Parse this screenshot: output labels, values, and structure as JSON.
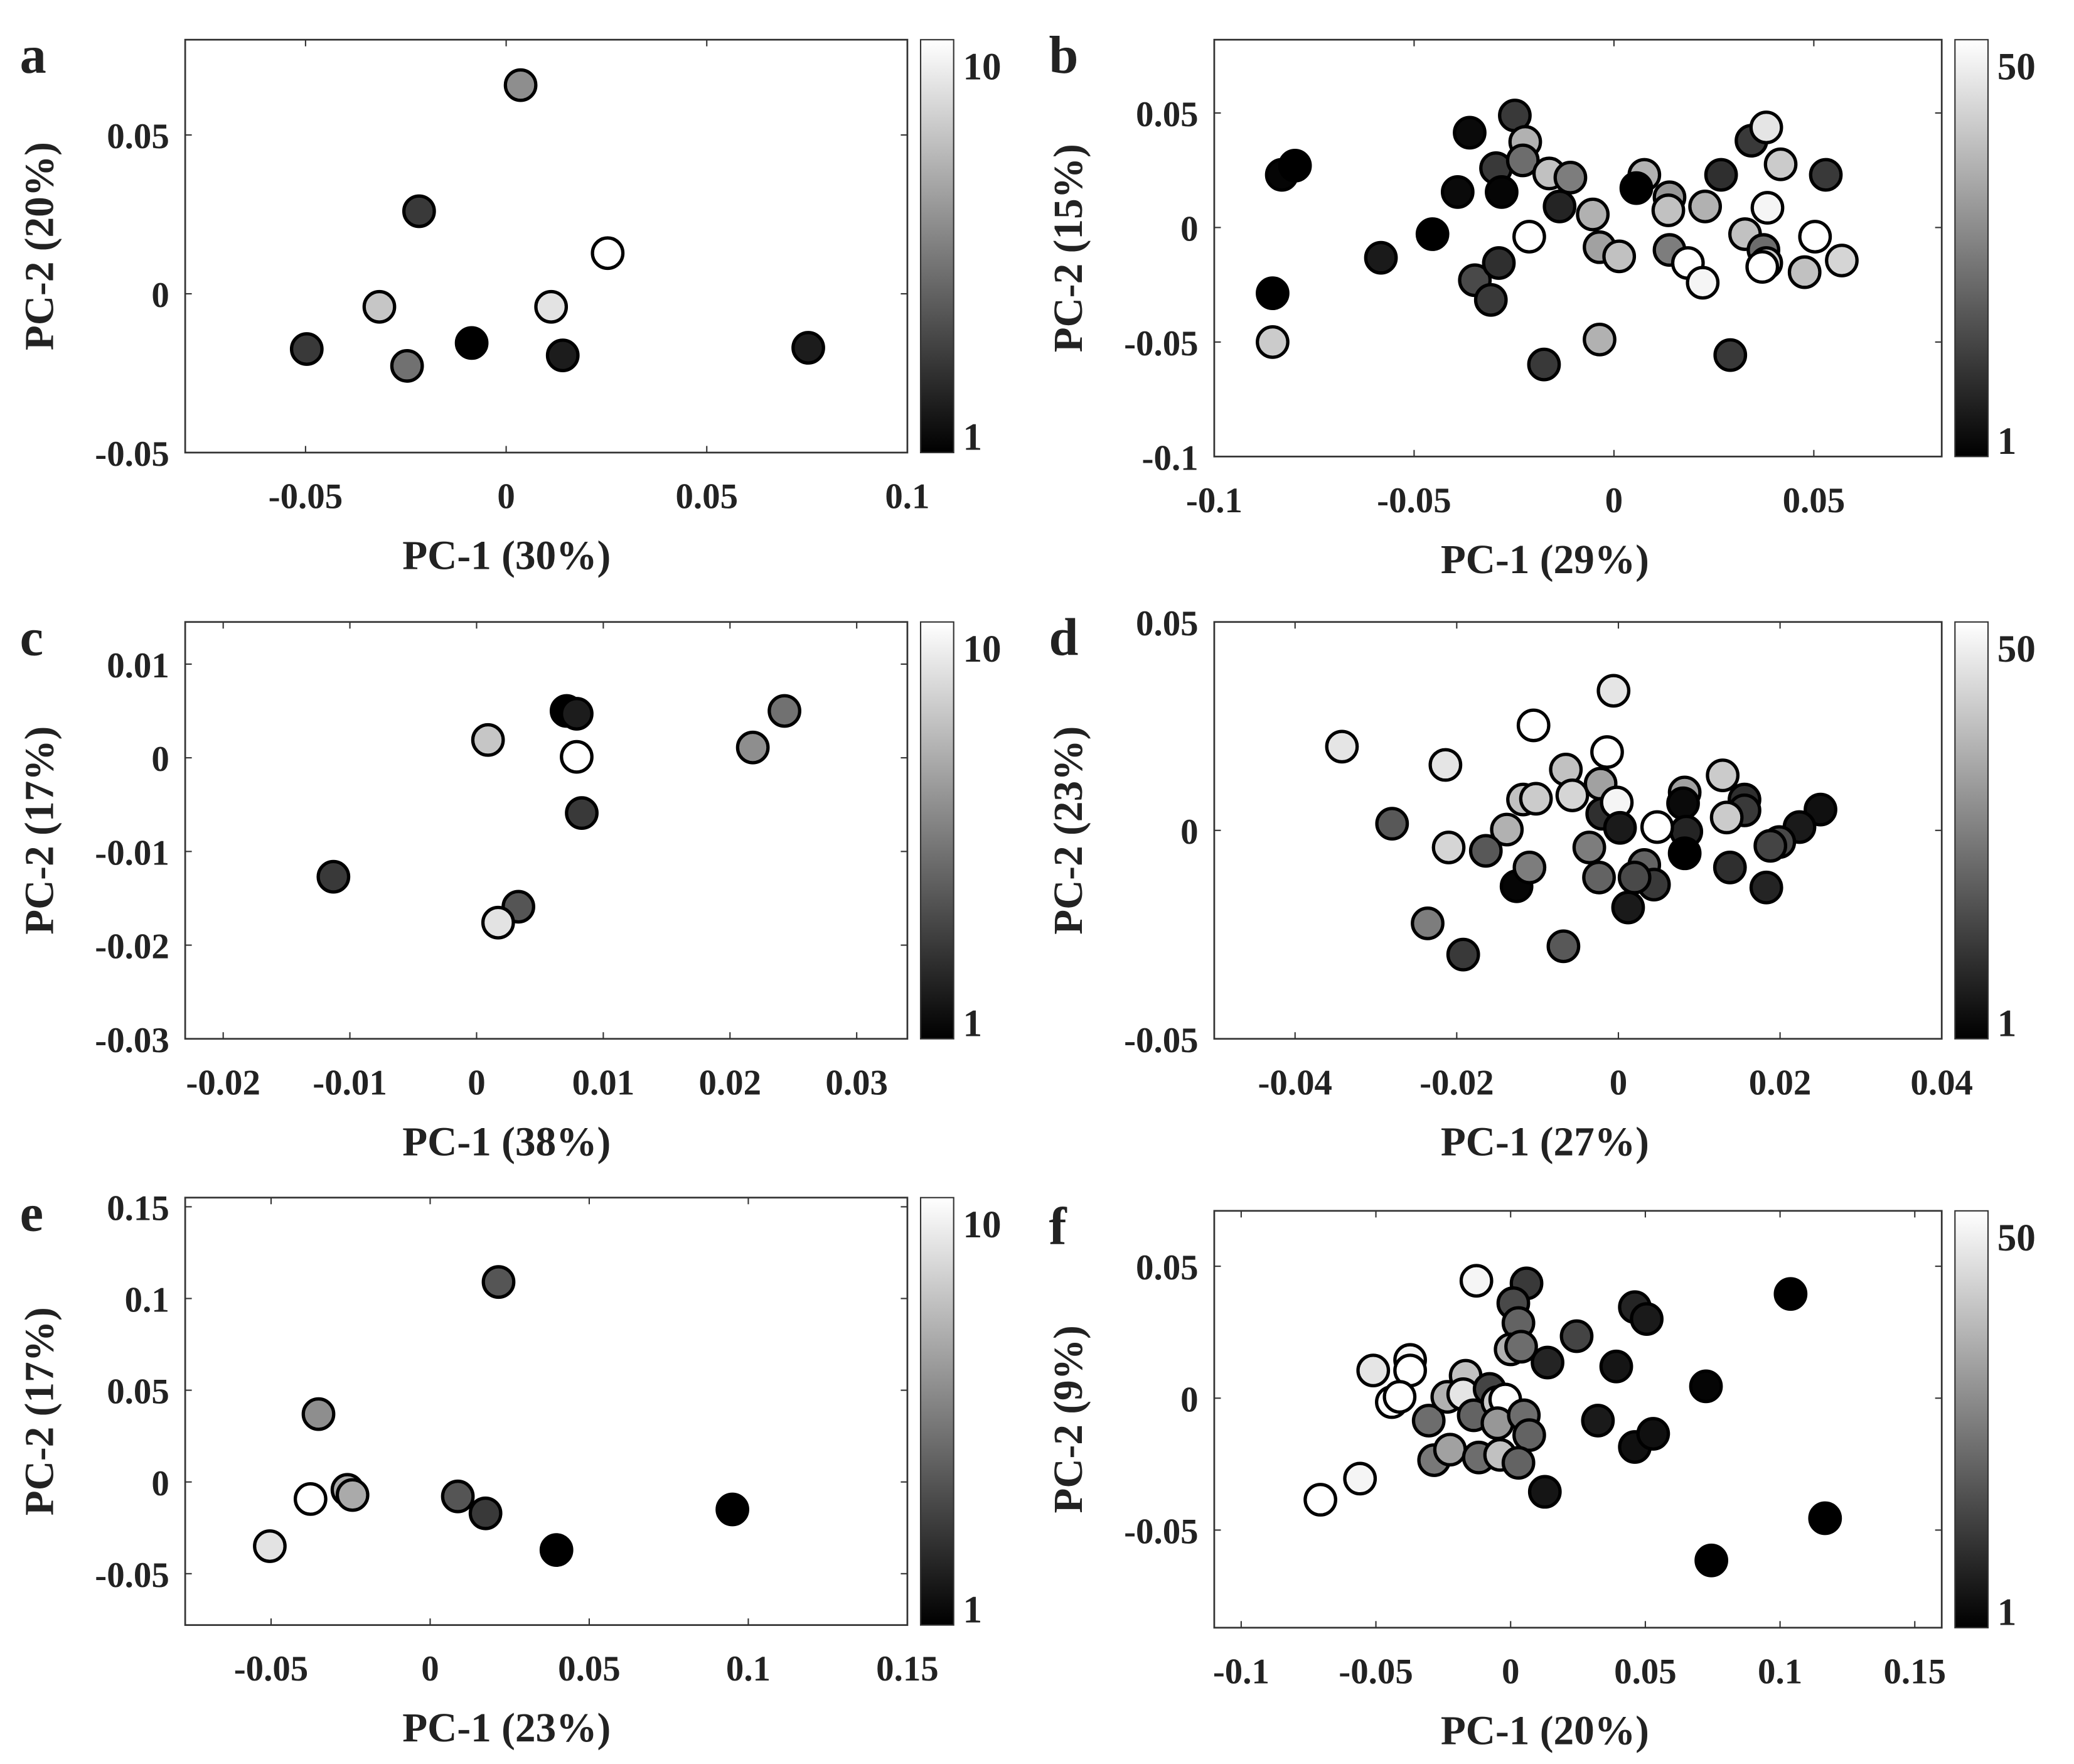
{
  "chart_data": [
    {
      "panel": "a",
      "type": "scatter",
      "xlabel": "PC-1 (30%)",
      "ylabel": "PC-2 (20%)",
      "xlim": [
        -0.08,
        0.1
      ],
      "ylim": [
        -0.05,
        0.08
      ],
      "xticks": [
        -0.05,
        0,
        0.05,
        0.1
      ],
      "xticklabels": [
        "-0.05",
        "0",
        "0.05",
        "0.1"
      ],
      "yticks": [
        -0.05,
        0,
        0.05
      ],
      "yticklabels": [
        "-0.05",
        "0",
        "0.05"
      ],
      "colorbar": {
        "min": 1,
        "max": 10,
        "labels": [
          "1",
          "10"
        ],
        "colormap": "gray"
      },
      "points": [
        [
          0.0036,
          0.0657,
          6
        ],
        [
          -0.0217,
          0.026,
          3
        ],
        [
          0.0253,
          0.0128,
          10
        ],
        [
          -0.0316,
          -0.0041,
          8
        ],
        [
          0.0112,
          -0.0041,
          9
        ],
        [
          -0.0497,
          -0.0174,
          3
        ],
        [
          -0.0247,
          -0.0227,
          5
        ],
        [
          -0.0086,
          -0.0155,
          1
        ],
        [
          0.0141,
          -0.0194,
          2
        ],
        [
          0.0753,
          -0.017,
          2
        ]
      ]
    },
    {
      "panel": "b",
      "type": "scatter",
      "xlabel": "PC-1 (29%)",
      "ylabel": "PC-2 (15%)",
      "xlim": [
        -0.1,
        0.082
      ],
      "ylim": [
        -0.1,
        0.082
      ],
      "xticks": [
        -0.1,
        -0.05,
        0,
        0.05
      ],
      "xticklabels": [
        "-0.1",
        "-0.05",
        "0",
        "0.05"
      ],
      "yticks": [
        -0.1,
        -0.05,
        0,
        0.05
      ],
      "yticklabels": [
        "-0.1",
        "-0.05",
        "0",
        "0.05"
      ],
      "colorbar": {
        "min": 1,
        "max": 50,
        "labels": [
          "1",
          "50"
        ],
        "colormap": "gray"
      },
      "points": [
        [
          -0.0248,
          0.0489,
          12
        ],
        [
          -0.0361,
          0.0414,
          3
        ],
        [
          -0.0222,
          0.0374,
          35
        ],
        [
          -0.0831,
          0.023,
          2
        ],
        [
          -0.0798,
          0.027,
          1
        ],
        [
          -0.0295,
          0.0259,
          12
        ],
        [
          -0.0391,
          0.0155,
          3
        ],
        [
          -0.0228,
          0.0293,
          22
        ],
        [
          -0.0162,
          0.0236,
          38
        ],
        [
          -0.0109,
          0.0218,
          25
        ],
        [
          -0.0281,
          0.0155,
          2
        ],
        [
          -0.0136,
          0.0092,
          8
        ],
        [
          -0.0053,
          0.0057,
          35
        ],
        [
          0.0076,
          0.023,
          35
        ],
        [
          0.0056,
          0.0172,
          1
        ],
        [
          0.0139,
          0.0132,
          30
        ],
        [
          0.0136,
          0.0075,
          38
        ],
        [
          0.0228,
          0.0092,
          35
        ],
        [
          0.0268,
          0.023,
          10
        ],
        [
          0.0344,
          0.0379,
          12
        ],
        [
          0.0381,
          0.0437,
          45
        ],
        [
          0.0417,
          0.0276,
          40
        ],
        [
          0.053,
          0.023,
          12
        ],
        [
          0.0384,
          0.0086,
          48
        ],
        [
          -0.0212,
          -0.004,
          50
        ],
        [
          -0.0454,
          -0.0029,
          1
        ],
        [
          -0.0583,
          -0.0132,
          6
        ],
        [
          -0.0036,
          -0.0086,
          32
        ],
        [
          0.0013,
          -0.0126,
          38
        ],
        [
          0.0139,
          -0.0098,
          25
        ],
        [
          0.0185,
          -0.0155,
          50
        ],
        [
          0.0222,
          -0.0241,
          48
        ],
        [
          0.0328,
          -0.0029,
          38
        ],
        [
          0.0374,
          -0.0098,
          22
        ],
        [
          0.0381,
          -0.0155,
          40
        ],
        [
          0.0371,
          -0.0172,
          50
        ],
        [
          0.0503,
          -0.004,
          50
        ],
        [
          0.0477,
          -0.0195,
          38
        ],
        [
          0.057,
          -0.0144,
          42
        ],
        [
          -0.0348,
          -0.023,
          15
        ],
        [
          -0.0288,
          -0.0155,
          10
        ],
        [
          -0.0308,
          -0.0316,
          12
        ],
        [
          -0.0854,
          -0.0287,
          1
        ],
        [
          -0.0854,
          -0.05,
          40
        ],
        [
          -0.0036,
          -0.0489,
          35
        ],
        [
          -0.0175,
          -0.0598,
          12
        ],
        [
          0.0291,
          -0.0557,
          12
        ]
      ]
    },
    {
      "panel": "c",
      "type": "scatter",
      "xlabel": "PC-1 (38%)",
      "ylabel": "PC-2 (17%)",
      "xlim": [
        -0.023,
        0.034
      ],
      "ylim": [
        -0.03,
        0.0145
      ],
      "xticks": [
        -0.02,
        -0.01,
        0,
        0.01,
        0.02,
        0.03
      ],
      "xticklabels": [
        "-0.02",
        "-0.01",
        "0",
        "0.01",
        "0.02",
        "0.03"
      ],
      "yticks": [
        -0.03,
        -0.02,
        -0.01,
        0,
        0.01
      ],
      "yticklabels": [
        "-0.03",
        "-0.02",
        "-0.01",
        "0",
        "0.01"
      ],
      "colorbar": {
        "min": 1,
        "max": 10,
        "labels": [
          "1",
          "10"
        ],
        "colormap": "gray"
      },
      "points": [
        [
          0.0071,
          0.005,
          1
        ],
        [
          0.0079,
          0.0047,
          2
        ],
        [
          0.0079,
          0.0001,
          10
        ],
        [
          0.0009,
          0.0019,
          8
        ],
        [
          0.0083,
          -0.0059,
          3
        ],
        [
          0.0243,
          0.005,
          5
        ],
        [
          0.0218,
          0.0011,
          6
        ],
        [
          -0.0113,
          -0.0127,
          3
        ],
        [
          0.0033,
          -0.0159,
          4
        ],
        [
          0.0017,
          -0.0176,
          9
        ]
      ]
    },
    {
      "panel": "d",
      "type": "scatter",
      "xlabel": "PC-1 (27%)",
      "ylabel": "PC-2 (23%)",
      "xlim": [
        -0.05,
        0.04
      ],
      "ylim": [
        -0.05,
        0.05
      ],
      "xticks": [
        -0.04,
        -0.02,
        0,
        0.02,
        0.04
      ],
      "xticklabels": [
        "-0.04",
        "-0.02",
        "0",
        "0.02",
        "0.04"
      ],
      "yticks": [
        -0.05,
        0,
        0.05
      ],
      "yticklabels": [
        "-0.05",
        "0",
        "0.05"
      ],
      "colorbar": {
        "min": 1,
        "max": 50,
        "labels": [
          "1",
          "50"
        ],
        "colormap": "gray"
      },
      "points": [
        [
          -0.0342,
          0.0201,
          45
        ],
        [
          -0.0006,
          0.0335,
          45
        ],
        [
          -0.0105,
          0.0252,
          50
        ],
        [
          -0.0014,
          0.0188,
          50
        ],
        [
          -0.0214,
          0.0157,
          45
        ],
        [
          -0.0065,
          0.0146,
          38
        ],
        [
          -0.0022,
          0.0112,
          32
        ],
        [
          -0.028,
          0.0016,
          18
        ],
        [
          -0.0118,
          0.0074,
          38
        ],
        [
          -0.0102,
          0.0076,
          40
        ],
        [
          -0.0057,
          0.0084,
          42
        ],
        [
          -0.002,
          0.004,
          10
        ],
        [
          -0.0002,
          0.0067,
          48
        ],
        [
          0.0002,
          0.0006,
          6
        ],
        [
          0.0082,
          0.0091,
          32
        ],
        [
          0.008,
          0.0065,
          3
        ],
        [
          0.0084,
          -0.0003,
          8
        ],
        [
          0.0082,
          -0.0055,
          1
        ],
        [
          0.0048,
          0.0008,
          50
        ],
        [
          0.0129,
          0.0132,
          40
        ],
        [
          0.0156,
          0.0074,
          10
        ],
        [
          0.0156,
          0.0048,
          12
        ],
        [
          0.0134,
          0.0031,
          40
        ],
        [
          0.025,
          0.005,
          4
        ],
        [
          0.0224,
          0.0008,
          6
        ],
        [
          0.0199,
          -0.0028,
          15
        ],
        [
          0.0188,
          -0.0037,
          14
        ],
        [
          0.0138,
          -0.0089,
          10
        ],
        [
          0.0183,
          -0.0137,
          8
        ],
        [
          -0.0138,
          0.0002,
          35
        ],
        [
          -0.021,
          -0.0041,
          42
        ],
        [
          -0.0164,
          -0.0049,
          18
        ],
        [
          -0.0126,
          -0.0134,
          2
        ],
        [
          -0.011,
          -0.0089,
          25
        ],
        [
          -0.0036,
          -0.0041,
          25
        ],
        [
          -0.0024,
          -0.0113,
          20
        ],
        [
          0.0032,
          -0.0083,
          20
        ],
        [
          0.0044,
          -0.013,
          12
        ],
        [
          0.0012,
          -0.0185,
          6
        ],
        [
          0.002,
          -0.0113,
          15
        ],
        [
          -0.0236,
          -0.0223,
          25
        ],
        [
          -0.0192,
          -0.0298,
          12
        ],
        [
          -0.0068,
          -0.0278,
          18
        ]
      ]
    },
    {
      "panel": "e",
      "type": "scatter",
      "xlabel": "PC-1 (23%)",
      "ylabel": "PC-2 (17%)",
      "xlim": [
        -0.077,
        0.15
      ],
      "ylim": [
        -0.078,
        0.155
      ],
      "xticks": [
        -0.05,
        0,
        0.05,
        0.1,
        0.15
      ],
      "xticklabels": [
        "-0.05",
        "0",
        "0.05",
        "0.1",
        "0.15"
      ],
      "yticks": [
        -0.05,
        0,
        0.05,
        0.1,
        0.15
      ],
      "yticklabels": [
        "-0.05",
        "0",
        "0.05",
        "0.1",
        "0.15"
      ],
      "colorbar": {
        "min": 1,
        "max": 10,
        "labels": [
          "1",
          "10"
        ],
        "colormap": "gray"
      },
      "points": [
        [
          0.0215,
          0.109,
          4
        ],
        [
          -0.0351,
          0.037,
          6
        ],
        [
          -0.026,
          -0.0043,
          7
        ],
        [
          -0.0244,
          -0.0071,
          7
        ],
        [
          -0.0376,
          -0.0093,
          10
        ],
        [
          0.0087,
          -0.0079,
          4
        ],
        [
          0.0174,
          -0.0171,
          3
        ],
        [
          0.0397,
          -0.0371,
          1
        ],
        [
          0.095,
          -0.015,
          1
        ],
        [
          -0.0504,
          -0.035,
          9
        ]
      ]
    },
    {
      "panel": "f",
      "type": "scatter",
      "xlabel": "PC-1 (20%)",
      "ylabel": "PC-2 (9%)",
      "xlim": [
        -0.11,
        0.16
      ],
      "ylim": [
        -0.087,
        0.071
      ],
      "xticks": [
        -0.1,
        -0.05,
        0,
        0.05,
        0.1,
        0.15
      ],
      "xticklabels": [
        "-0.1",
        "-0.05",
        "0",
        "0.05",
        "0.1",
        "0.15"
      ],
      "yticks": [
        -0.05,
        0,
        0.05
      ],
      "yticklabels": [
        "-0.05",
        "0",
        "0.05"
      ],
      "colorbar": {
        "min": 1,
        "max": 50,
        "labels": [
          "1",
          "50"
        ],
        "colormap": "gray"
      },
      "points": [
        [
          -0.0127,
          0.0445,
          48
        ],
        [
          0.0059,
          0.0435,
          12
        ],
        [
          0.001,
          0.036,
          15
        ],
        [
          0.0029,
          0.0285,
          20
        ],
        [
          0,
          0.0185,
          35
        ],
        [
          0.0039,
          0.0195,
          22
        ],
        [
          0.0245,
          0.0235,
          14
        ],
        [
          0.0461,
          0.0345,
          8
        ],
        [
          0.0505,
          0.03,
          6
        ],
        [
          0.1039,
          0.0395,
          1
        ],
        [
          0.0392,
          0.012,
          5
        ],
        [
          0.0725,
          0.0045,
          2
        ],
        [
          0.0137,
          0.0135,
          8
        ],
        [
          -0.051,
          0.0105,
          45
        ],
        [
          -0.0373,
          0.0145,
          48
        ],
        [
          -0.0373,
          0.0105,
          50
        ],
        [
          -0.0441,
          -0.0015,
          50
        ],
        [
          -0.0412,
          0.0005,
          50
        ],
        [
          -0.0304,
          -0.0085,
          22
        ],
        [
          -0.0235,
          0.0005,
          35
        ],
        [
          -0.0167,
          0.0085,
          38
        ],
        [
          -0.0176,
          0.0015,
          45
        ],
        [
          -0.0137,
          -0.0065,
          20
        ],
        [
          -0.0078,
          0.0035,
          14
        ],
        [
          -0.0049,
          -0.0015,
          40
        ],
        [
          -0.002,
          -0.0005,
          50
        ],
        [
          -0.0049,
          -0.0095,
          30
        ],
        [
          0.0049,
          -0.0065,
          22
        ],
        [
          0.0069,
          -0.014,
          20
        ],
        [
          -0.0284,
          -0.0235,
          24
        ],
        [
          -0.0225,
          -0.0195,
          32
        ],
        [
          -0.0118,
          -0.0225,
          22
        ],
        [
          -0.0039,
          -0.0215,
          38
        ],
        [
          0.0029,
          -0.0245,
          20
        ],
        [
          0.0127,
          -0.0355,
          5
        ],
        [
          0.0324,
          -0.0085,
          6
        ],
        [
          0.0461,
          -0.0185,
          4
        ],
        [
          0.0529,
          -0.0135,
          4
        ],
        [
          -0.0559,
          -0.0305,
          48
        ],
        [
          -0.0706,
          -0.0385,
          50
        ],
        [
          0.0745,
          -0.0615,
          1
        ],
        [
          0.1167,
          -0.0455,
          1
        ]
      ]
    }
  ]
}
